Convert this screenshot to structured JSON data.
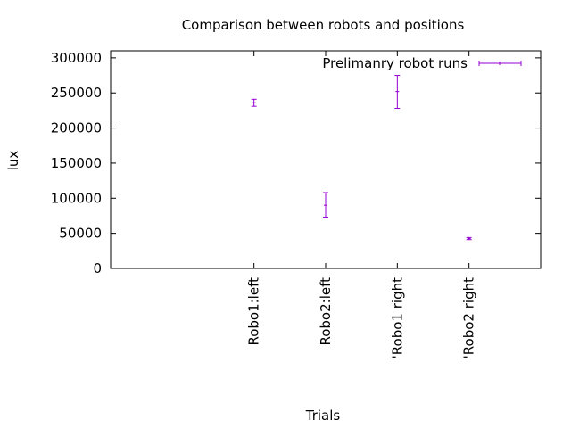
{
  "chart_data": {
    "type": "scatter",
    "title": "Comparison between robots and positions",
    "xlabel": "Trials",
    "ylabel": "lux",
    "ylim": [
      0,
      310000
    ],
    "xlim": [
      -2,
      4
    ],
    "yticks": [
      0,
      50000,
      100000,
      150000,
      200000,
      250000,
      300000
    ],
    "ytick_labels": [
      "0",
      "50000",
      "100000",
      "150000",
      "200000",
      "250000",
      "300000"
    ],
    "categories": [
      "Robo1:left",
      "Robo2:left",
      "'Robo1 right",
      "'Robo2 right"
    ],
    "grid": false,
    "legend_position": "top-right",
    "series": [
      {
        "name": "Prelimanry robot runs",
        "color": "#9400d3",
        "points": [
          {
            "x": 0,
            "y": 236000,
            "ylow": 231000,
            "yhigh": 241000
          },
          {
            "x": 1,
            "y": 90000,
            "ylow": 73000,
            "yhigh": 108000
          },
          {
            "x": 2,
            "y": 252000,
            "ylow": 228000,
            "yhigh": 275000
          },
          {
            "x": 3,
            "y": 42500,
            "ylow": 41000,
            "yhigh": 44000
          }
        ]
      }
    ]
  }
}
